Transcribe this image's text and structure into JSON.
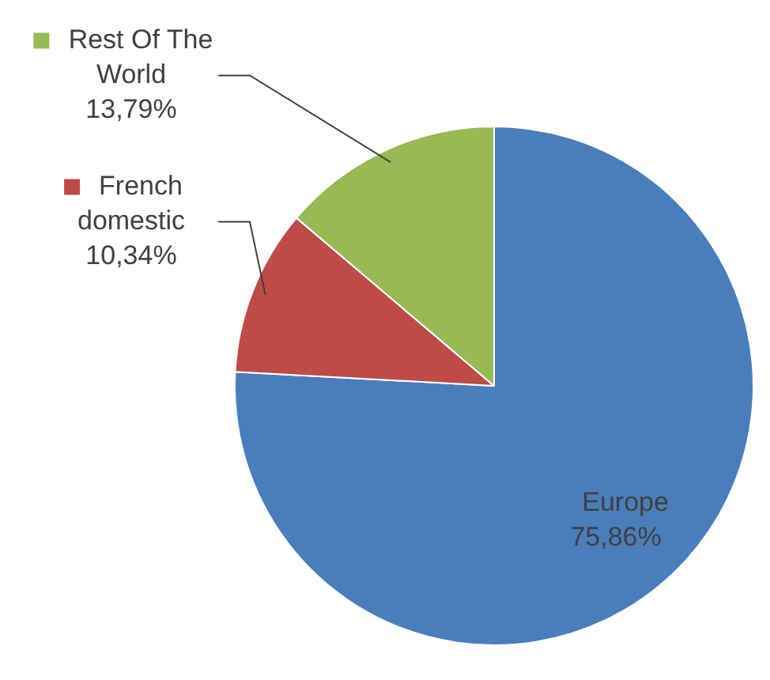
{
  "chart_data": {
    "type": "pie",
    "categories": [
      "Europe",
      "French domestic",
      "Rest Of The World"
    ],
    "values": [
      75.86,
      10.34,
      13.79
    ],
    "colors": [
      "#4a7ebb",
      "#be4b48",
      "#98b954"
    ],
    "value_labels": [
      "75,86%",
      "10,34%",
      "13,79%"
    ],
    "legend": "left"
  }
}
